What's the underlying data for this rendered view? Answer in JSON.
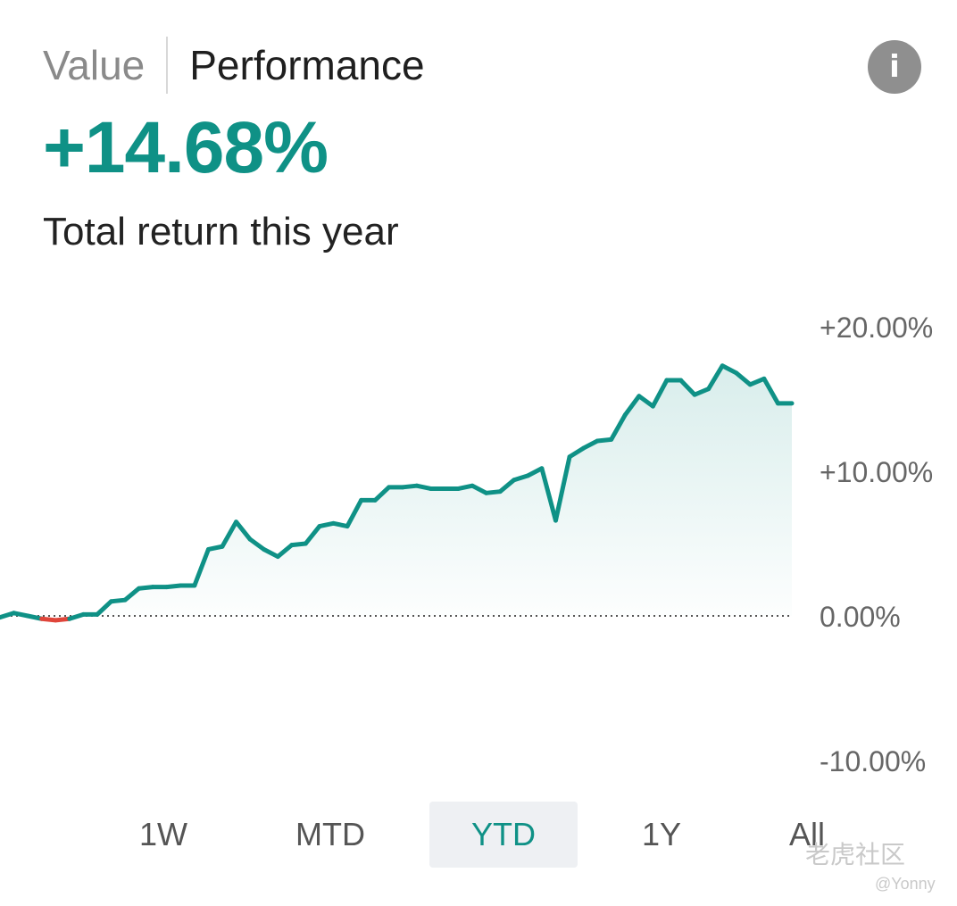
{
  "tabs": {
    "value_label": "Value",
    "performance_label": "Performance"
  },
  "info_icon": "info-icon",
  "summary": {
    "return_value": "+14.68%",
    "subtitle": "Total return this year"
  },
  "colors": {
    "up": "#0f9186",
    "down": "#e0453a",
    "axis_text": "#666666",
    "baseline": "#555555"
  },
  "chart_data": {
    "type": "area",
    "title": "",
    "xlabel": "",
    "ylabel": "",
    "ylim": [
      -10,
      20
    ],
    "y_ticks": [
      20,
      10,
      0,
      -10
    ],
    "y_tick_labels": [
      "+20.00%",
      "+10.00%",
      "0.00%",
      "-10.00%"
    ],
    "grid": false,
    "baseline": 0,
    "series": [
      {
        "values": [
          -0.1,
          0.2,
          0.0,
          -0.2,
          -0.3,
          -0.2,
          0.1,
          0.1,
          1.0,
          1.1,
          1.9,
          2.0,
          2.0,
          2.1,
          2.1,
          4.6,
          4.8,
          6.5,
          5.3,
          4.6,
          4.1,
          4.9,
          5.0,
          6.2,
          6.4,
          6.2,
          8.0,
          8.0,
          8.9,
          8.9,
          9.0,
          8.8,
          8.8,
          8.8,
          9.0,
          8.5,
          8.6,
          9.4,
          9.7,
          10.2,
          6.6,
          11.0,
          11.6,
          12.1,
          12.2,
          13.9,
          15.2,
          14.5,
          16.3,
          16.3,
          15.3,
          15.7,
          17.3,
          16.8,
          16.0,
          16.4,
          14.7,
          14.7
        ]
      }
    ]
  },
  "range_selector": {
    "options": [
      "1W",
      "MTD",
      "YTD",
      "1Y",
      "All"
    ],
    "selected": "YTD"
  },
  "watermark": {
    "brand": "老虎社区",
    "user": "@Yonny"
  }
}
